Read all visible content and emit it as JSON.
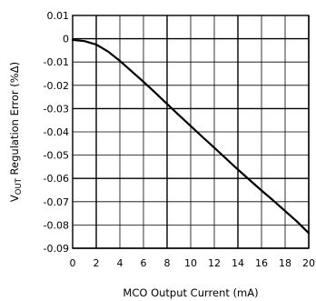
{
  "chart_data": {
    "type": "line",
    "title": "",
    "xlabel": "MCO Output Current (mA)",
    "ylabel": {
      "prefix": "V",
      "subscript": "OUT",
      "suffix": " Regulation Error (%Δ)"
    },
    "xlim": [
      0,
      20
    ],
    "ylim": [
      -0.09,
      0.01
    ],
    "x_ticks": [
      0,
      2,
      4,
      6,
      8,
      10,
      12,
      14,
      16,
      18,
      20
    ],
    "y_ticks": [
      0.01,
      0,
      -0.01,
      -0.02,
      -0.03,
      -0.04,
      -0.05,
      -0.06,
      -0.07,
      -0.08,
      -0.09
    ],
    "x_tick_labels": [
      "0",
      "2",
      "4",
      "6",
      "8",
      "10",
      "12",
      "14",
      "16",
      "18",
      "20"
    ],
    "y_tick_labels": [
      "0.01",
      "0",
      "-0.01",
      "-0.02",
      "-0.03",
      "-0.04",
      "-0.05",
      "-0.06",
      "-0.07",
      "-0.08",
      "-0.09"
    ],
    "major_grid_x": [
      2,
      8,
      14,
      20
    ],
    "major_grid_y": [
      0,
      -0.03,
      -0.06,
      -0.09
    ],
    "grid": true,
    "series": [
      {
        "color": "#000000",
        "x": [
          0,
          1,
          2,
          2.5,
          3,
          4,
          5,
          6,
          7,
          8,
          9,
          10,
          11,
          12,
          13,
          14,
          15,
          16,
          17,
          18,
          19,
          20
        ],
        "y": [
          -0.0005,
          -0.001,
          -0.0025,
          -0.004,
          -0.0055,
          -0.0095,
          -0.014,
          -0.0185,
          -0.0232,
          -0.028,
          -0.0328,
          -0.0375,
          -0.0422,
          -0.0468,
          -0.0515,
          -0.0562,
          -0.0607,
          -0.0652,
          -0.0695,
          -0.074,
          -0.0785,
          -0.0835
        ]
      }
    ]
  }
}
